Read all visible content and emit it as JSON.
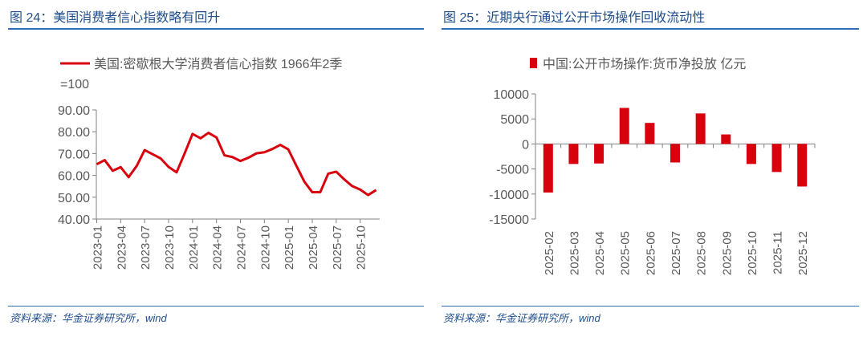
{
  "left": {
    "title": "图 24：美国消费者信心指数略有回升",
    "source": "资料来源：华金证券研究所，wind"
  },
  "right": {
    "title": "图 25：近期央行通过公开市场操作回收流动性",
    "source": "资料来源：华金证券研究所，wind"
  },
  "colors": {
    "series": "#d9000d",
    "title": "#1f4e8c",
    "rule": "#2e6db4",
    "axis": "#808080"
  },
  "chart_data": [
    {
      "type": "line",
      "legend": [
        "美国:密歇根大学消费者信心指数 1966年2季",
        "=100"
      ],
      "legend_placement": "top",
      "ylim": [
        40,
        90
      ],
      "yticks": [
        "90.00",
        "80.00",
        "70.00",
        "60.00",
        "50.00",
        "40.00"
      ],
      "xticks": [
        "2023-01",
        "2023-04",
        "2023-07",
        "2023-10",
        "2024-01",
        "2024-04",
        "2024-07",
        "2024-10",
        "2025-01",
        "2025-04",
        "2025-07",
        "2025-10"
      ],
      "x": [
        "2023-01",
        "2023-02",
        "2023-03",
        "2023-04",
        "2023-05",
        "2023-06",
        "2023-07",
        "2023-08",
        "2023-09",
        "2023-10",
        "2023-11",
        "2023-12",
        "2024-01",
        "2024-02",
        "2024-03",
        "2024-04",
        "2024-05",
        "2024-06",
        "2024-07",
        "2024-08",
        "2024-09",
        "2024-10",
        "2024-11",
        "2024-12",
        "2025-01",
        "2025-02",
        "2025-03",
        "2025-04",
        "2025-05",
        "2025-06",
        "2025-07",
        "2025-08",
        "2025-09",
        "2025-10",
        "2025-11",
        "2025-12"
      ],
      "values": [
        65.1,
        67.0,
        62.1,
        63.8,
        59.2,
        64.3,
        71.6,
        69.7,
        67.8,
        63.9,
        61.4,
        70.0,
        79.0,
        77.0,
        79.5,
        77.4,
        69.2,
        68.4,
        66.6,
        68.1,
        70.1,
        70.6,
        72.1,
        74.0,
        71.9,
        64.5,
        57.2,
        52.3,
        52.3,
        60.8,
        61.7,
        58.2,
        55.1,
        53.5,
        51.0,
        53.3
      ]
    },
    {
      "type": "bar",
      "legend": [
        "中国:公开市场操作:货币净投放 亿元"
      ],
      "legend_placement": "top",
      "ylim": [
        -15000,
        10000
      ],
      "yticks": [
        "10000",
        "5000",
        "0",
        "-5000",
        "-10000",
        "-15000"
      ],
      "categories": [
        "2025-02",
        "2025-03",
        "2025-04",
        "2025-05",
        "2025-06",
        "2025-07",
        "2025-08",
        "2025-09",
        "2025-10",
        "2025-11",
        "2025-12"
      ],
      "values": [
        -9700,
        -4000,
        -3900,
        7200,
        4200,
        -3700,
        6100,
        1900,
        -4000,
        -5600,
        -8500
      ]
    }
  ]
}
